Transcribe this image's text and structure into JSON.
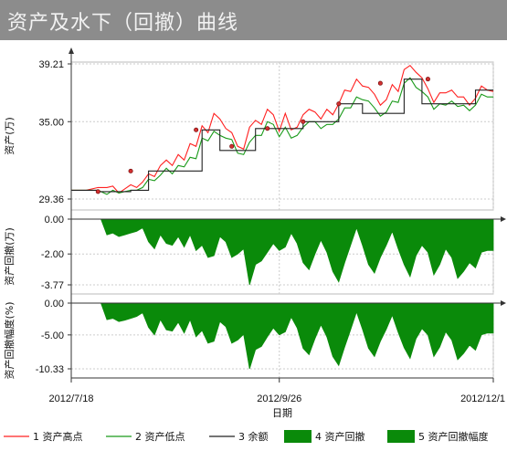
{
  "title": "资产及水下（回撤）曲线",
  "colors": {
    "high": "#ff2020",
    "low": "#1a9a1a",
    "balance": "#222222",
    "fill": "#0a8a0a",
    "title_bg": "#8c8c8c"
  },
  "legend": [
    {
      "num": "1",
      "label": "资产高点",
      "kind": "line",
      "color": "#ff2020"
    },
    {
      "num": "2",
      "label": "资产低点",
      "kind": "line",
      "color": "#1a9a1a"
    },
    {
      "num": "3",
      "label": "余额",
      "kind": "line",
      "color": "#222222"
    },
    {
      "num": "4",
      "label": "资产回撤",
      "kind": "area",
      "color": "#0a8a0a"
    },
    {
      "num": "5",
      "label": "资产回撤幅度",
      "kind": "area",
      "color": "#0a8a0a"
    }
  ],
  "chart_data": [
    {
      "type": "line",
      "ylabel": "资产(万)",
      "ylim": [
        29.36,
        39.21
      ],
      "yticks": [
        "39.21",
        "35.00",
        "29.36"
      ],
      "series": [
        {
          "name": "资产高点",
          "x": [
            0,
            5,
            9,
            12,
            14,
            16,
            18,
            20,
            22,
            24,
            26,
            28,
            30,
            32,
            34,
            36,
            38,
            40,
            42,
            44,
            46,
            48,
            50,
            52,
            54,
            56,
            58,
            60,
            62,
            64,
            66,
            68,
            70,
            72,
            74,
            76,
            78,
            80,
            82,
            84,
            86,
            88,
            90,
            92,
            94,
            96,
            98,
            100,
            102,
            104,
            106,
            108,
            110,
            112,
            114,
            116,
            118,
            120,
            122,
            124,
            126,
            128,
            130,
            132,
            134,
            136,
            138,
            140,
            142
          ],
          "y": [
            30.0,
            30.0,
            30.2,
            30.2,
            30.3,
            29.8,
            30.1,
            30.4,
            30.2,
            30.6,
            31.2,
            31.0,
            31.8,
            32.2,
            31.8,
            32.6,
            32.2,
            33.4,
            33.2,
            34.7,
            34.2,
            35.6,
            35.2,
            34.5,
            34.2,
            33.2,
            33.0,
            34.6,
            35.1,
            34.8,
            35.9,
            35.5,
            34.3,
            35.6,
            34.4,
            34.6,
            35.5,
            35.9,
            35.7,
            35.2,
            35.9,
            35.5,
            36.3,
            37.3,
            37.2,
            38.1,
            37.6,
            37.5,
            37.0,
            36.2,
            36.6,
            37.7,
            37.2,
            38.8,
            39.1,
            38.6,
            38.2,
            37.4,
            36.4,
            37.1,
            37.1,
            37.3,
            36.8,
            36.8,
            36.2,
            36.7,
            37.6,
            37.3,
            37.2
          ]
        },
        {
          "name": "资产低点",
          "x": [
            0,
            5,
            9,
            12,
            14,
            16,
            18,
            20,
            22,
            24,
            26,
            28,
            30,
            32,
            34,
            36,
            38,
            40,
            42,
            44,
            46,
            48,
            50,
            52,
            54,
            56,
            58,
            60,
            62,
            64,
            66,
            68,
            70,
            72,
            74,
            76,
            78,
            80,
            82,
            84,
            86,
            88,
            90,
            92,
            94,
            96,
            98,
            100,
            102,
            104,
            106,
            108,
            110,
            112,
            114,
            116,
            118,
            120,
            122,
            124,
            126,
            128,
            130,
            132,
            134,
            136,
            138,
            140,
            142
          ],
          "y": [
            30.0,
            30.0,
            30.0,
            29.7,
            30.0,
            29.8,
            29.9,
            30.0,
            30.0,
            30.2,
            30.8,
            30.7,
            31.1,
            31.6,
            31.2,
            31.8,
            31.7,
            32.4,
            32.3,
            33.8,
            33.6,
            34.3,
            34.0,
            33.8,
            33.7,
            32.7,
            32.6,
            33.5,
            34.0,
            34.0,
            35.0,
            34.8,
            33.9,
            34.6,
            33.8,
            34.0,
            34.6,
            35.0,
            35.0,
            34.5,
            34.8,
            34.8,
            35.2,
            36.0,
            36.0,
            36.8,
            36.6,
            36.5,
            36.0,
            35.4,
            35.7,
            36.5,
            36.4,
            37.8,
            38.2,
            37.5,
            37.2,
            36.8,
            35.9,
            36.3,
            36.2,
            36.5,
            36.1,
            36.2,
            35.8,
            36.2,
            37.0,
            36.8,
            36.8
          ]
        },
        {
          "name": "余额",
          "x": [
            0,
            5,
            9,
            12,
            14,
            16,
            18,
            20,
            22,
            24,
            26,
            28,
            30,
            32,
            34,
            36,
            38,
            40,
            42,
            44,
            46,
            48,
            50,
            52,
            54,
            56,
            58,
            60,
            62,
            64,
            66,
            68,
            70,
            72,
            74,
            76,
            78,
            80,
            82,
            84,
            86,
            88,
            90,
            92,
            94,
            96,
            98,
            100,
            102,
            104,
            106,
            108,
            110,
            112,
            114,
            116,
            118,
            120,
            122,
            124,
            126,
            128,
            130,
            132,
            134,
            136,
            138,
            140,
            142
          ],
          "y": [
            30.0,
            30.0,
            29.9,
            29.9,
            29.9,
            29.9,
            29.9,
            30.0,
            30.0,
            30.0,
            31.4,
            31.4,
            31.4,
            31.4,
            31.4,
            31.4,
            31.4,
            31.4,
            31.4,
            34.4,
            34.4,
            34.4,
            32.9,
            32.9,
            32.9,
            32.9,
            32.9,
            32.9,
            34.5,
            34.5,
            34.5,
            34.5,
            34.5,
            34.5,
            34.5,
            34.5,
            35.0,
            35.0,
            35.0,
            35.0,
            35.0,
            35.0,
            36.3,
            36.3,
            36.3,
            36.3,
            35.6,
            35.6,
            35.6,
            35.6,
            35.6,
            35.6,
            35.6,
            38.1,
            38.1,
            38.1,
            36.3,
            36.3,
            36.3,
            36.3,
            36.3,
            36.3,
            36.3,
            36.3,
            36.3,
            37.3,
            37.3,
            37.3,
            37.3
          ]
        },
        {
          "name": "markers",
          "x": [
            9,
            20,
            42,
            54,
            66,
            78,
            90,
            104,
            120
          ],
          "y": [
            29.9,
            31.4,
            34.4,
            33.2,
            34.5,
            35.0,
            36.3,
            37.8,
            38.1
          ]
        }
      ]
    },
    {
      "type": "area",
      "ylabel": "资产回撤(万)",
      "ylim": [
        -3.77,
        0
      ],
      "yticks": [
        "0.00",
        "-2.00",
        "-3.77"
      ],
      "series": [
        {
          "name": "资产回撤",
          "x": [
            0,
            10,
            12,
            14,
            16,
            18,
            20,
            22,
            24,
            26,
            28,
            30,
            32,
            34,
            36,
            38,
            40,
            42,
            44,
            46,
            48,
            50,
            52,
            54,
            56,
            58,
            60,
            62,
            64,
            66,
            68,
            70,
            72,
            74,
            76,
            78,
            80,
            82,
            84,
            86,
            88,
            90,
            92,
            94,
            96,
            98,
            100,
            102,
            104,
            106,
            108,
            110,
            112,
            114,
            116,
            118,
            120,
            122,
            124,
            126,
            128,
            130,
            132,
            134,
            136,
            138,
            140,
            142
          ],
          "y": [
            0,
            0,
            -0.9,
            -0.8,
            -1.0,
            -0.9,
            -0.8,
            -0.7,
            -0.5,
            -1.3,
            -1.7,
            -0.9,
            -1.4,
            -1.5,
            -1.0,
            -1.6,
            -0.9,
            -1.8,
            -1.5,
            -2.2,
            -2.1,
            -1.0,
            -1.3,
            -2.2,
            -2.0,
            -1.7,
            -3.77,
            -2.6,
            -2.4,
            -1.9,
            -1.4,
            -1.8,
            -1.6,
            -0.8,
            -1.4,
            -2.5,
            -2.9,
            -2.0,
            -1.2,
            -1.9,
            -3.0,
            -3.6,
            -2.5,
            -1.5,
            -0.5,
            -1.5,
            -2.6,
            -3.1,
            -2.2,
            -1.5,
            -0.7,
            -1.7,
            -2.6,
            -3.3,
            -2.1,
            -1.5,
            -1.9,
            -3.2,
            -2.6,
            -1.7,
            -2.2,
            -3.4,
            -3.0,
            -2.5,
            -2.8,
            -1.9,
            -1.8,
            -1.8
          ]
        }
      ]
    },
    {
      "type": "area",
      "ylabel": "资产回撤幅度(%)",
      "ylim": [
        -10.33,
        0
      ],
      "yticks": [
        "0.00",
        "-5.00",
        "-10.33"
      ],
      "series": [
        {
          "name": "资产回撤幅度",
          "x": [
            0,
            10,
            12,
            14,
            16,
            18,
            20,
            22,
            24,
            26,
            28,
            30,
            32,
            34,
            36,
            38,
            40,
            42,
            44,
            46,
            48,
            50,
            52,
            54,
            56,
            58,
            60,
            62,
            64,
            66,
            68,
            70,
            72,
            74,
            76,
            78,
            80,
            82,
            84,
            86,
            88,
            90,
            92,
            94,
            96,
            98,
            100,
            102,
            104,
            106,
            108,
            110,
            112,
            114,
            116,
            118,
            120,
            122,
            124,
            126,
            128,
            130,
            132,
            134,
            136,
            138,
            140,
            142
          ],
          "y": [
            0,
            0,
            -2.6,
            -2.4,
            -2.9,
            -2.7,
            -2.4,
            -2.1,
            -1.5,
            -3.8,
            -5.0,
            -2.6,
            -4.2,
            -4.4,
            -3.0,
            -4.7,
            -2.6,
            -5.3,
            -4.3,
            -6.3,
            -6.0,
            -2.9,
            -3.7,
            -6.3,
            -5.8,
            -4.9,
            -10.33,
            -7.3,
            -6.8,
            -5.3,
            -3.9,
            -5.0,
            -4.5,
            -2.2,
            -3.9,
            -7.1,
            -8.1,
            -5.6,
            -3.4,
            -5.3,
            -8.4,
            -9.8,
            -6.9,
            -4.2,
            -1.4,
            -4.1,
            -7.1,
            -8.4,
            -6.0,
            -4.1,
            -1.9,
            -4.6,
            -7.0,
            -8.7,
            -5.6,
            -4.0,
            -5.0,
            -8.4,
            -6.9,
            -4.5,
            -5.8,
            -8.9,
            -7.9,
            -6.6,
            -7.4,
            -5.0,
            -4.7,
            -4.7
          ]
        }
      ]
    }
  ],
  "x_axis": {
    "label": "日期",
    "range": [
      0,
      142
    ],
    "ticks": [
      {
        "x": 0,
        "label": "2012/7/18"
      },
      {
        "x": 70,
        "label": "2012/9/26"
      },
      {
        "x": 142,
        "label": "2012/12/1"
      }
    ]
  }
}
